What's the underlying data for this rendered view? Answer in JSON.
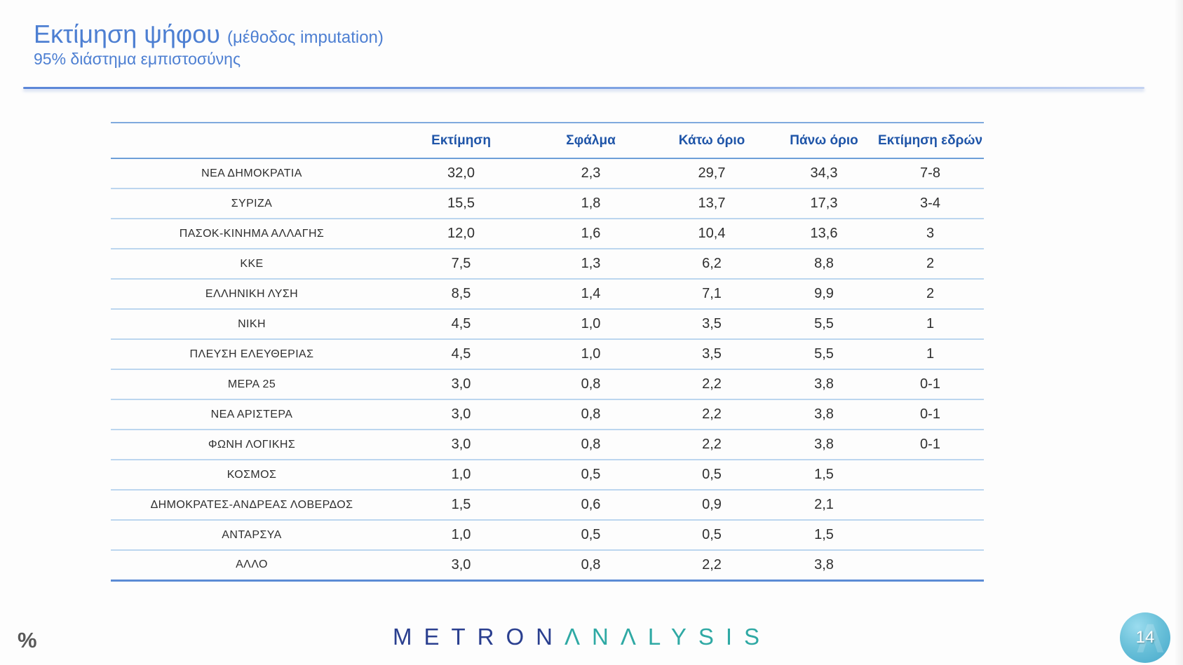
{
  "slide": {
    "title": "Εκτίμηση ψήφου",
    "title_suffix": "(μέθοδος imputation)",
    "subtitle": "95% διάστημα εμπιστοσύνης",
    "footer_percent_symbol": "%",
    "page_number": "14",
    "logo": {
      "part1": "METRON",
      "part2": "ΛNΛLYSIS",
      "lambda_watermark": "Λ"
    }
  },
  "colors": {
    "title_blue": "#4d7fd2",
    "header_text_blue": "#1f55a8",
    "row_line_blue": "#bcd6ef",
    "strong_line_blue": "#5b8bd5",
    "logo_navy": "#2a3f8f",
    "logo_teal": "#2fa9a4",
    "page_circle_teal": "#57b4d2"
  },
  "table": {
    "headers": [
      "Εκτίμηση",
      "Σφάλμα",
      "Κάτω όριο",
      "Πάνω όριο",
      "Εκτίμηση εδρών"
    ],
    "rows": [
      {
        "party": "ΝΕΑ  ΔΗΜΟΚΡΑΤΙΑ",
        "values": [
          "32,0",
          "2,3",
          "29,7",
          "34,3",
          "7-8"
        ]
      },
      {
        "party": "ΣΥΡΙΖΑ",
        "values": [
          "15,5",
          "1,8",
          "13,7",
          "17,3",
          "3-4"
        ]
      },
      {
        "party": "ΠΑΣΟΚ-ΚΙΝΗΜΑ  ΑΛΛΑΓΗΣ",
        "values": [
          "12,0",
          "1,6",
          "10,4",
          "13,6",
          "3"
        ]
      },
      {
        "party": "ΚΚΕ",
        "values": [
          "7,5",
          "1,3",
          "6,2",
          "8,8",
          "2"
        ]
      },
      {
        "party": "ΕΛΛΗΝΙΚΗ ΛΥΣΗ",
        "values": [
          "8,5",
          "1,4",
          "7,1",
          "9,9",
          "2"
        ]
      },
      {
        "party": "ΝΙΚΗ",
        "values": [
          "4,5",
          "1,0",
          "3,5",
          "5,5",
          "1"
        ]
      },
      {
        "party": "ΠΛΕΥΣΗ ΕΛΕΥΘΕΡΙΑΣ",
        "values": [
          "4,5",
          "1,0",
          "3,5",
          "5,5",
          "1"
        ]
      },
      {
        "party": "ΜΕΡΑ 25",
        "values": [
          "3,0",
          "0,8",
          "2,2",
          "3,8",
          "0-1"
        ]
      },
      {
        "party": "ΝΕΑ ΑΡΙΣΤΕΡΑ",
        "values": [
          "3,0",
          "0,8",
          "2,2",
          "3,8",
          "0-1"
        ]
      },
      {
        "party": "ΦΩΝΗ ΛΟΓΙΚΗΣ",
        "values": [
          "3,0",
          "0,8",
          "2,2",
          "3,8",
          "0-1"
        ]
      },
      {
        "party": "ΚΟΣΜΟΣ",
        "values": [
          "1,0",
          "0,5",
          "0,5",
          "1,5",
          ""
        ]
      },
      {
        "party": "ΔΗΜΟΚΡΑΤΕΣ-ΑΝΔΡΕΑΣ ΛΟΒΕΡΔΟΣ",
        "values": [
          "1,5",
          "0,6",
          "0,9",
          "2,1",
          ""
        ]
      },
      {
        "party": "ΑΝΤΑΡΣΥΑ",
        "values": [
          "1,0",
          "0,5",
          "0,5",
          "1,5",
          ""
        ]
      },
      {
        "party": "ΑΛΛΟ",
        "values": [
          "3,0",
          "0,8",
          "2,2",
          "3,8",
          ""
        ]
      }
    ]
  }
}
